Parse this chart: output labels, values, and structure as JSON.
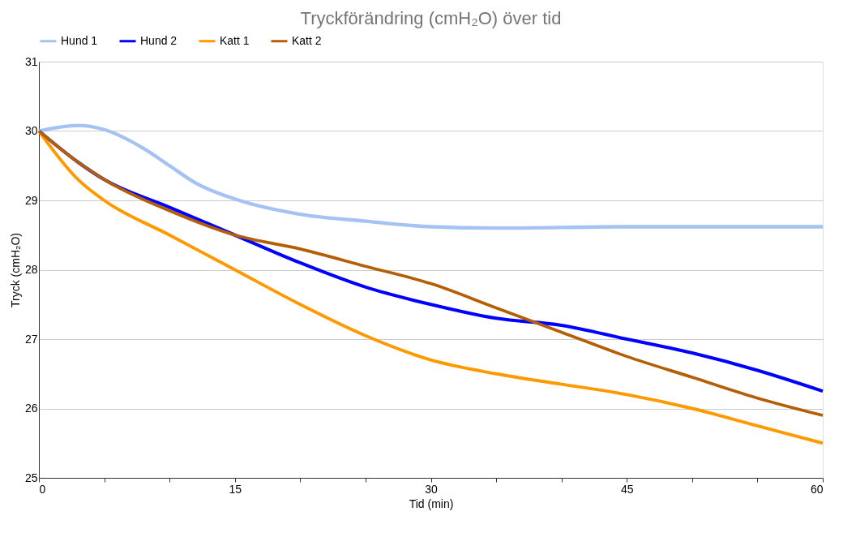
{
  "chart_data": {
    "type": "line",
    "title": "Tryckförändring (cmH₂O) över tid",
    "xlabel": "Tid (min)",
    "ylabel": "Tryck (cmH₂O)",
    "xlim": [
      0,
      60
    ],
    "xticks": [
      0,
      {
        "value": 5,
        "label": null
      },
      {
        "value": 10,
        "label": null
      },
      15,
      {
        "value": 20,
        "label": null
      },
      {
        "value": 25,
        "label": null
      },
      30,
      {
        "value": 35,
        "label": null
      },
      {
        "value": 40,
        "label": null
      },
      45,
      {
        "value": 50,
        "label": null
      },
      {
        "value": 55,
        "label": null
      },
      60
    ],
    "ylim": [
      25,
      31
    ],
    "yticks": [
      25,
      26,
      27,
      28,
      29,
      30,
      31
    ],
    "grid": "y",
    "legend": "top",
    "line_style": "solid",
    "marker": "none",
    "series": [
      {
        "name": "Hund 1",
        "color": "#a4c2f4",
        "x": [
          0,
          3,
          5,
          8,
          10,
          12,
          15,
          20,
          25,
          30,
          35,
          45,
          60
        ],
        "values": [
          30,
          30.08,
          30.02,
          29.75,
          29.5,
          29.25,
          29.02,
          28.8,
          28.7,
          28.62,
          28.6,
          28.62,
          28.62
        ]
      },
      {
        "name": "Hund 2",
        "color": "#0000ff",
        "x": [
          0,
          3,
          5,
          10,
          15,
          20,
          25,
          30,
          35,
          40,
          45,
          50,
          55,
          60
        ],
        "values": [
          30,
          29.55,
          29.3,
          28.9,
          28.5,
          28.1,
          27.75,
          27.5,
          27.3,
          27.2,
          27.0,
          26.8,
          26.55,
          26.25
        ]
      },
      {
        "name": "Katt 1",
        "color": "#ff9900",
        "x": [
          0,
          3,
          5,
          10,
          15,
          20,
          25,
          30,
          35,
          40,
          45,
          50,
          55,
          60
        ],
        "values": [
          30,
          29.3,
          29.0,
          28.5,
          28.0,
          27.5,
          27.05,
          26.7,
          26.5,
          26.35,
          26.2,
          26.0,
          25.75,
          25.5
        ]
      },
      {
        "name": "Katt 2",
        "color": "#b45f06",
        "x": [
          0,
          3,
          5,
          10,
          15,
          20,
          25,
          30,
          35,
          40,
          45,
          50,
          55,
          60
        ],
        "values": [
          30,
          29.55,
          29.3,
          28.85,
          28.5,
          28.3,
          28.05,
          27.8,
          27.45,
          27.1,
          26.75,
          26.45,
          26.15,
          25.9
        ]
      }
    ]
  }
}
